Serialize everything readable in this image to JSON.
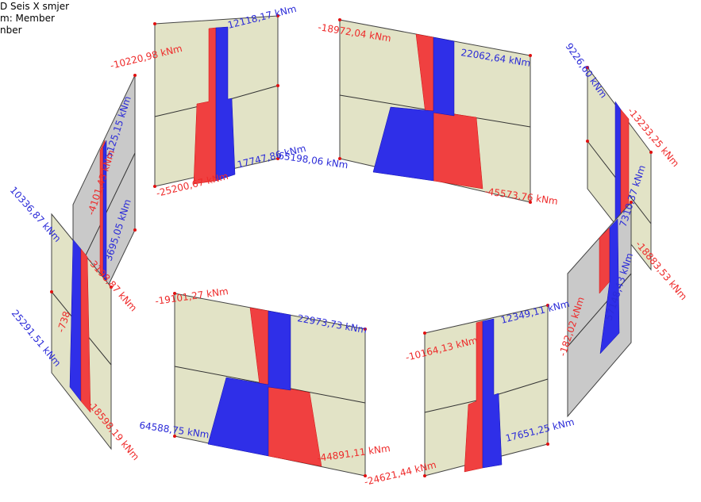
{
  "header": {
    "lines": [
      "D Seis X smjer",
      "m:  Member",
      "nber"
    ]
  },
  "labels": [
    "-10220,98 kNm",
    "12118,17 kNm",
    "-18972,04 kNm",
    "22062,64 kNm",
    "9226,60 kNm",
    "-13233,25 kNm",
    "17747,86 kNm",
    "-25200,67 kNm",
    "65198,06 kNm",
    "-45573,76 kNm",
    "7310,37 kNm",
    "-18883,53 kNm",
    "5125,15 kNm",
    "-4101,43 kNm",
    "3695,05 kNm",
    "10336,87 kNm",
    "-3198,87 kNm",
    "-738",
    "25291,51 kNm",
    "-18598,19 kNm",
    "-19101,27 kNm",
    "22973,73 kNm",
    "64588,75 kNm",
    "-44891,11 kNm",
    "-10164,13 kNm",
    "12349,11 kNm",
    "17651,25 kNm",
    "-24621,44 kNm",
    "-182,02 kNm",
    "57148,43 kNm"
  ]
}
